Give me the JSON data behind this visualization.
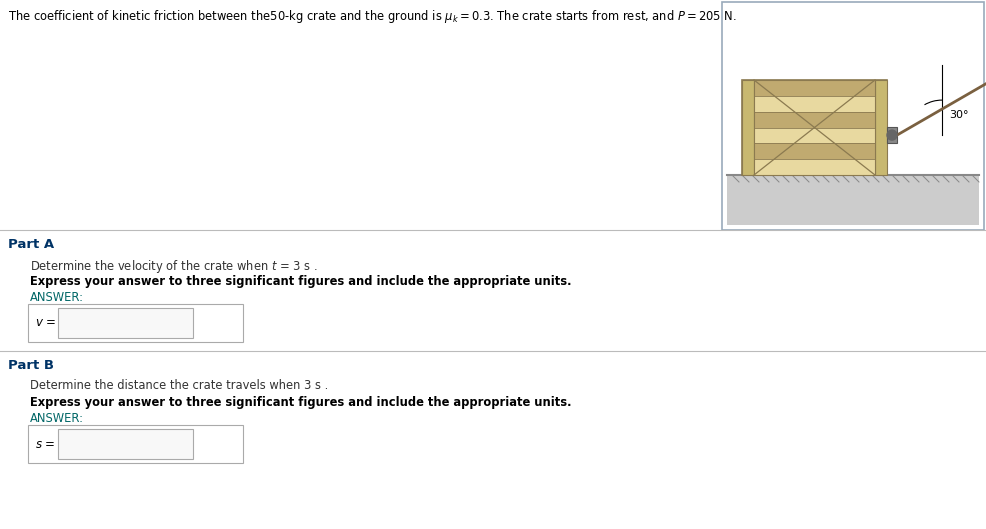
{
  "title_full": "The coefficient of kinetic friction between the50-kg crate and the ground is $\\mu_k = 0.3$. The crate starts from rest, and $P = 205\\ \\mathrm{N}$.",
  "partA_label": "Part A",
  "partA_instruction": "Determine the velocity of the crate when $t$ = 3 s .",
  "partA_bold": "Express your answer to three significant figures and include the appropriate units.",
  "partA_answer_label": "ANSWER:",
  "partA_input_label": "$v$ =",
  "partB_label": "Part B",
  "partB_instruction": "Determine the distance the crate travels when 3 s .",
  "partB_bold": "Express your answer to three significant figures and include the appropriate units.",
  "partB_answer_label": "ANSWER:",
  "partB_input_label": "$s$ =",
  "crate_face_color": "#E8D9A0",
  "crate_edge_color": "#8B7A50",
  "crate_border_color": "#C8B870",
  "crate_stripe_color": "#C0AA70",
  "crate_panel_color": "#D4C080",
  "ground_line_color": "#999999",
  "ground_fill_color": "#CCCCCC",
  "rope_color": "#555555",
  "angle_text": "30°",
  "bg_color": "#FFFFFF",
  "divider_color": "#BBBBBB",
  "outer_box_border": "#AAAAAA",
  "input_field_border": "#AAAAAA",
  "diagram_border_color": "#99AABB",
  "partA_label_color": "#003366",
  "partB_label_color": "#003366",
  "answer_color": "#006666",
  "instruction_color": "#333333",
  "bold_color": "#000000",
  "title_color": "#000000"
}
